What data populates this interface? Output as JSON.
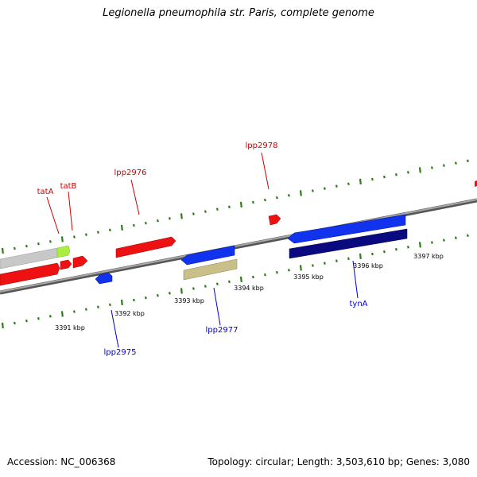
{
  "title": "Legionella pneumophila str. Paris, complete genome",
  "footer": {
    "accession": "Accession: NC_006368",
    "summary": "Topology: circular; Length: 3,503,610 bp; Genes: 3,080"
  },
  "colors": {
    "backbone": "#8a8a8a",
    "tick": "#2e7d1a",
    "forward_label": "#cc0000",
    "reverse_label": "#0000cc",
    "red_gene": "#ee1111",
    "blue_gene": "#1133ee",
    "navy_gene": "#0a0a80",
    "grey_gene": "#c8c8c8",
    "lime_gene": "#aaee44",
    "khaki_gene": "#c8c088"
  },
  "scale": {
    "tick_labels": [
      "3391 kbp",
      "3392 kbp",
      "3393 kbp",
      "3394 kbp",
      "3395 kbp",
      "3396 kbp",
      "3397 kbp"
    ]
  },
  "labels": {
    "forward": [
      "tatA",
      "tatB",
      "lpp2976",
      "lpp2978"
    ],
    "reverse": [
      "lpp2975",
      "lpp2977",
      "tynA"
    ]
  }
}
